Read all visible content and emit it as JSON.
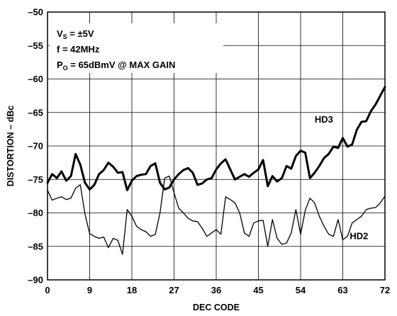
{
  "chart_data": {
    "type": "line",
    "xlabel": "DEC CODE",
    "ylabel": "DISTORTION – dBc",
    "xlim": [
      0,
      72
    ],
    "ylim": [
      -90,
      -50
    ],
    "xticks": [
      0,
      9,
      18,
      27,
      36,
      45,
      54,
      63,
      72
    ],
    "yticks": [
      -50,
      -55,
      -60,
      -65,
      -70,
      -75,
      -80,
      -85,
      -90
    ],
    "grid": true,
    "annotations": {
      "vs_main": "V",
      "vs_sub": "S",
      "vs_value": " = ±5V",
      "freq": "f = 42MHz",
      "po_main": "P",
      "po_sub": "O",
      "po_value": " = 65dBmV @ MAX GAIN"
    },
    "series": [
      {
        "name": "HD3",
        "x": [
          0,
          1,
          2,
          3,
          4,
          5,
          6,
          7,
          8,
          9,
          10,
          11,
          12,
          13,
          14,
          15,
          16,
          17,
          18,
          19,
          20,
          21,
          22,
          23,
          24,
          25,
          26,
          27,
          28,
          29,
          30,
          31,
          32,
          33,
          34,
          35,
          36,
          37,
          38,
          39,
          40,
          41,
          42,
          43,
          44,
          45,
          46,
          47,
          48,
          49,
          50,
          51,
          52,
          53,
          54,
          55,
          56,
          57,
          58,
          59,
          60,
          61,
          62,
          63,
          64,
          65,
          66,
          67,
          68,
          69,
          70,
          71,
          72
        ],
        "values": [
          -75.5,
          -74.2,
          -74.8,
          -73.8,
          -75.2,
          -74.5,
          -71.2,
          -72.8,
          -75.5,
          -76.5,
          -75.8,
          -74.2,
          -73.6,
          -72.5,
          -73.1,
          -74.0,
          -73.9,
          -76.6,
          -75.2,
          -74.5,
          -74.3,
          -74.2,
          -73.0,
          -72.6,
          -75.5,
          -76.5,
          -76.2,
          -75.0,
          -74.2,
          -73.6,
          -73.3,
          -74.0,
          -75.8,
          -75.6,
          -75.0,
          -74.8,
          -73.5,
          -72.6,
          -72.0,
          -73.5,
          -75.0,
          -74.6,
          -74.2,
          -74.6,
          -74.0,
          -73.5,
          -72.1,
          -76.0,
          -74.5,
          -75.3,
          -74.8,
          -73.0,
          -73.4,
          -71.5,
          -70.7,
          -71.0,
          -74.8,
          -74.0,
          -73.0,
          -71.8,
          -71.2,
          -70.1,
          -70.3,
          -68.8,
          -70.1,
          -69.8,
          -67.6,
          -66.4,
          -66.3,
          -64.8,
          -63.8,
          -62.5,
          -61.2
        ]
      },
      {
        "name": "HD2",
        "x": [
          0,
          1,
          2,
          3,
          4,
          5,
          6,
          7,
          8,
          9,
          10,
          11,
          12,
          13,
          14,
          15,
          16,
          17,
          18,
          19,
          20,
          21,
          22,
          23,
          24,
          25,
          26,
          27,
          28,
          29,
          30,
          31,
          32,
          33,
          34,
          35,
          36,
          37,
          38,
          39,
          40,
          41,
          42,
          43,
          44,
          45,
          46,
          47,
          48,
          49,
          50,
          51,
          52,
          53,
          54,
          55,
          56,
          57,
          58,
          59,
          60,
          61,
          62,
          63,
          64,
          65,
          66,
          67,
          68,
          69,
          70,
          71,
          72
        ],
        "values": [
          -76.6,
          -78.1,
          -77.8,
          -77.6,
          -78.0,
          -77.8,
          -76.3,
          -75.8,
          -80.2,
          -83.1,
          -83.5,
          -83.8,
          -83.6,
          -85.2,
          -83.8,
          -84.1,
          -86.2,
          -79.5,
          -80.5,
          -82.0,
          -82.5,
          -82.8,
          -83.5,
          -83.2,
          -80.0,
          -74.8,
          -74.5,
          -77.0,
          -79.3,
          -80.0,
          -80.8,
          -81.2,
          -81.3,
          -82.3,
          -83.5,
          -83.0,
          -82.5,
          -83.2,
          -77.6,
          -78.0,
          -78.5,
          -80.0,
          -83.0,
          -83.5,
          -81.5,
          -81.2,
          -81.1,
          -85.0,
          -81.0,
          -83.8,
          -84.7,
          -84.5,
          -83.0,
          -79.5,
          -83.2,
          -79.6,
          -77.8,
          -78.5,
          -80.5,
          -82.0,
          -83.2,
          -83.5,
          -81.0,
          -84.0,
          -83.5,
          -81.5,
          -81.0,
          -80.5,
          -79.5,
          -79.3,
          -79.2,
          -78.5,
          -77.5
        ]
      }
    ]
  }
}
